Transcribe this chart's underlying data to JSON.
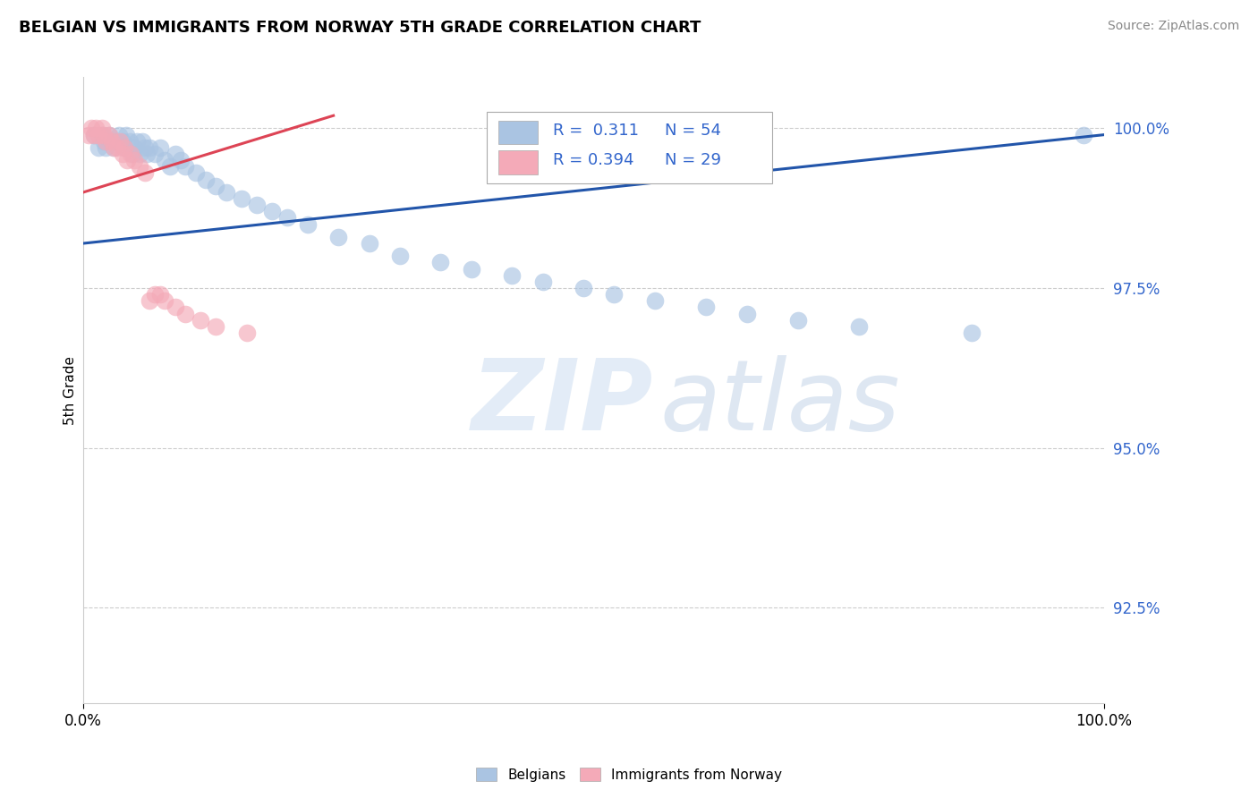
{
  "title": "BELGIAN VS IMMIGRANTS FROM NORWAY 5TH GRADE CORRELATION CHART",
  "source": "Source: ZipAtlas.com",
  "ylabel": "5th Grade",
  "xmin": 0.0,
  "xmax": 1.0,
  "ymin": 0.91,
  "ymax": 1.008,
  "yticks": [
    0.925,
    0.95,
    0.975,
    1.0
  ],
  "ytick_labels": [
    "92.5%",
    "95.0%",
    "97.5%",
    "100.0%"
  ],
  "xticks": [
    0.0,
    1.0
  ],
  "xtick_labels": [
    "0.0%",
    "100.0%"
  ],
  "legend_r_blue": "0.311",
  "legend_n_blue": "54",
  "legend_r_pink": "0.394",
  "legend_n_pink": "29",
  "legend_label_blue": "Belgians",
  "legend_label_pink": "Immigrants from Norway",
  "blue_color": "#aac4e2",
  "pink_color": "#f4aab8",
  "blue_line_color": "#2255aa",
  "pink_line_color": "#dd4455",
  "blue_x": [
    0.01,
    0.015,
    0.018,
    0.02,
    0.022,
    0.025,
    0.028,
    0.03,
    0.032,
    0.035,
    0.038,
    0.04,
    0.042,
    0.045,
    0.048,
    0.05,
    0.052,
    0.055,
    0.058,
    0.06,
    0.062,
    0.065,
    0.07,
    0.075,
    0.08,
    0.085,
    0.09,
    0.095,
    0.1,
    0.11,
    0.12,
    0.13,
    0.14,
    0.155,
    0.17,
    0.185,
    0.2,
    0.22,
    0.25,
    0.28,
    0.31,
    0.35,
    0.38,
    0.42,
    0.45,
    0.49,
    0.52,
    0.56,
    0.61,
    0.65,
    0.7,
    0.76,
    0.87,
    0.98
  ],
  "blue_y": [
    0.999,
    0.997,
    0.999,
    0.998,
    0.997,
    0.999,
    0.998,
    0.997,
    0.998,
    0.999,
    0.998,
    0.997,
    0.999,
    0.998,
    0.996,
    0.997,
    0.998,
    0.996,
    0.998,
    0.997,
    0.996,
    0.997,
    0.996,
    0.997,
    0.995,
    0.994,
    0.996,
    0.995,
    0.994,
    0.993,
    0.992,
    0.991,
    0.99,
    0.989,
    0.988,
    0.987,
    0.986,
    0.985,
    0.983,
    0.982,
    0.98,
    0.979,
    0.978,
    0.977,
    0.976,
    0.975,
    0.974,
    0.973,
    0.972,
    0.971,
    0.97,
    0.969,
    0.968,
    0.999
  ],
  "pink_x": [
    0.005,
    0.008,
    0.01,
    0.012,
    0.015,
    0.018,
    0.02,
    0.022,
    0.025,
    0.028,
    0.03,
    0.033,
    0.036,
    0.038,
    0.04,
    0.043,
    0.046,
    0.05,
    0.055,
    0.06,
    0.065,
    0.07,
    0.075,
    0.08,
    0.09,
    0.1,
    0.115,
    0.13,
    0.16
  ],
  "pink_y": [
    0.999,
    1.0,
    0.999,
    1.0,
    0.999,
    1.0,
    0.999,
    0.998,
    0.999,
    0.998,
    0.997,
    0.997,
    0.998,
    0.996,
    0.997,
    0.995,
    0.996,
    0.995,
    0.994,
    0.993,
    0.973,
    0.974,
    0.974,
    0.973,
    0.972,
    0.971,
    0.97,
    0.969,
    0.968
  ],
  "blue_line_x": [
    0.0,
    1.0
  ],
  "blue_line_y": [
    0.982,
    0.999
  ],
  "pink_line_x": [
    0.0,
    0.245
  ],
  "pink_line_y": [
    0.99,
    1.002
  ]
}
